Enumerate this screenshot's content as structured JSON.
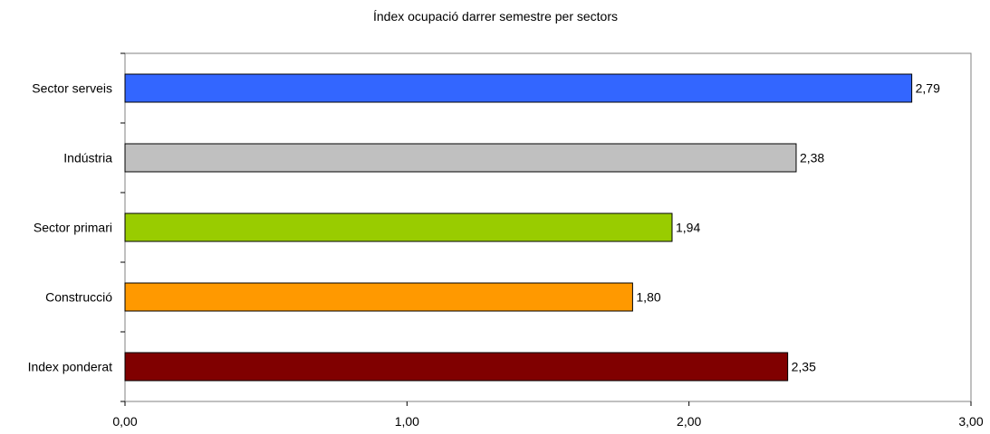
{
  "chart_data": {
    "type": "bar",
    "orientation": "horizontal",
    "title": "Índex ocupació darrer semestre per sectors",
    "xlabel": "",
    "ylabel": "",
    "categories": [
      "Sector serveis",
      "Indústria",
      "Sector primari",
      "Construcció",
      "Index ponderat"
    ],
    "values": [
      2.79,
      2.38,
      1.94,
      1.8,
      2.35
    ],
    "value_labels": [
      "2,79",
      "2,38",
      "1,94",
      "1,80",
      "2,35"
    ],
    "bar_colors": [
      "#3366ff",
      "#c0c0c0",
      "#99cc00",
      "#ff9900",
      "#800000"
    ],
    "xlim": [
      0,
      3
    ],
    "x_ticks": [
      0,
      1,
      2,
      3
    ],
    "x_tick_labels": [
      "0,00",
      "1,00",
      "2,00",
      "3,00"
    ],
    "grid": false,
    "legend": "none"
  }
}
